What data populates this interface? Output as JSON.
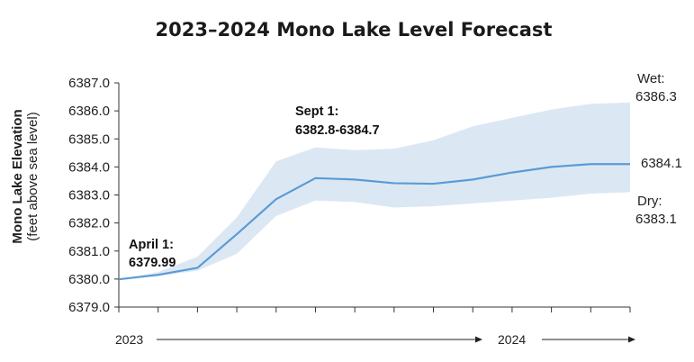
{
  "chart_data": {
    "type": "area",
    "title": "2023–2024 Mono Lake Level Forecast",
    "ylabel": "Mono Lake Elevation",
    "ylabel_sub": "(feet above sea level)",
    "ylim": [
      6379.0,
      6387.0
    ],
    "yticks": [
      "6379.0",
      "6380.0",
      "6381.0",
      "6382.0",
      "6383.0",
      "6384.0",
      "6385.0",
      "6386.0",
      "6387.0"
    ],
    "x_labels": [
      "2023",
      "2024"
    ],
    "x": [
      0,
      1,
      2,
      3,
      4,
      5,
      6,
      7,
      8,
      9,
      10,
      11,
      12,
      13
    ],
    "series": [
      {
        "values": [
          6379.99,
          6380.15,
          6380.4,
          6381.6,
          6382.85,
          6383.6,
          6383.55,
          6383.42,
          6383.4,
          6383.55,
          6383.8,
          6384.0,
          6384.1,
          6384.1
        ]
      }
    ],
    "band_upper": [
      6379.99,
      6380.25,
      6380.8,
      6382.2,
      6384.2,
      6384.7,
      6384.6,
      6384.65,
      6384.95,
      6385.45,
      6385.75,
      6386.05,
      6386.25,
      6386.3
    ],
    "band_lower": [
      6379.99,
      6380.1,
      6380.3,
      6380.9,
      6382.25,
      6382.8,
      6382.75,
      6382.55,
      6382.6,
      6382.7,
      6382.8,
      6382.9,
      6383.05,
      6383.1
    ],
    "annotations": {
      "april_label": "April 1:",
      "april_value": "6379.99",
      "sept_label": "Sept 1:",
      "sept_value": "6382.8-6384.7",
      "wet_label": "Wet:",
      "wet_value": "6386.3",
      "mid_value": "6384.1",
      "dry_label": "Dry:",
      "dry_value": "6383.1"
    },
    "colors": {
      "line": "#5b9bd5",
      "band": "#dbe8f4"
    },
    "grid": false
  }
}
